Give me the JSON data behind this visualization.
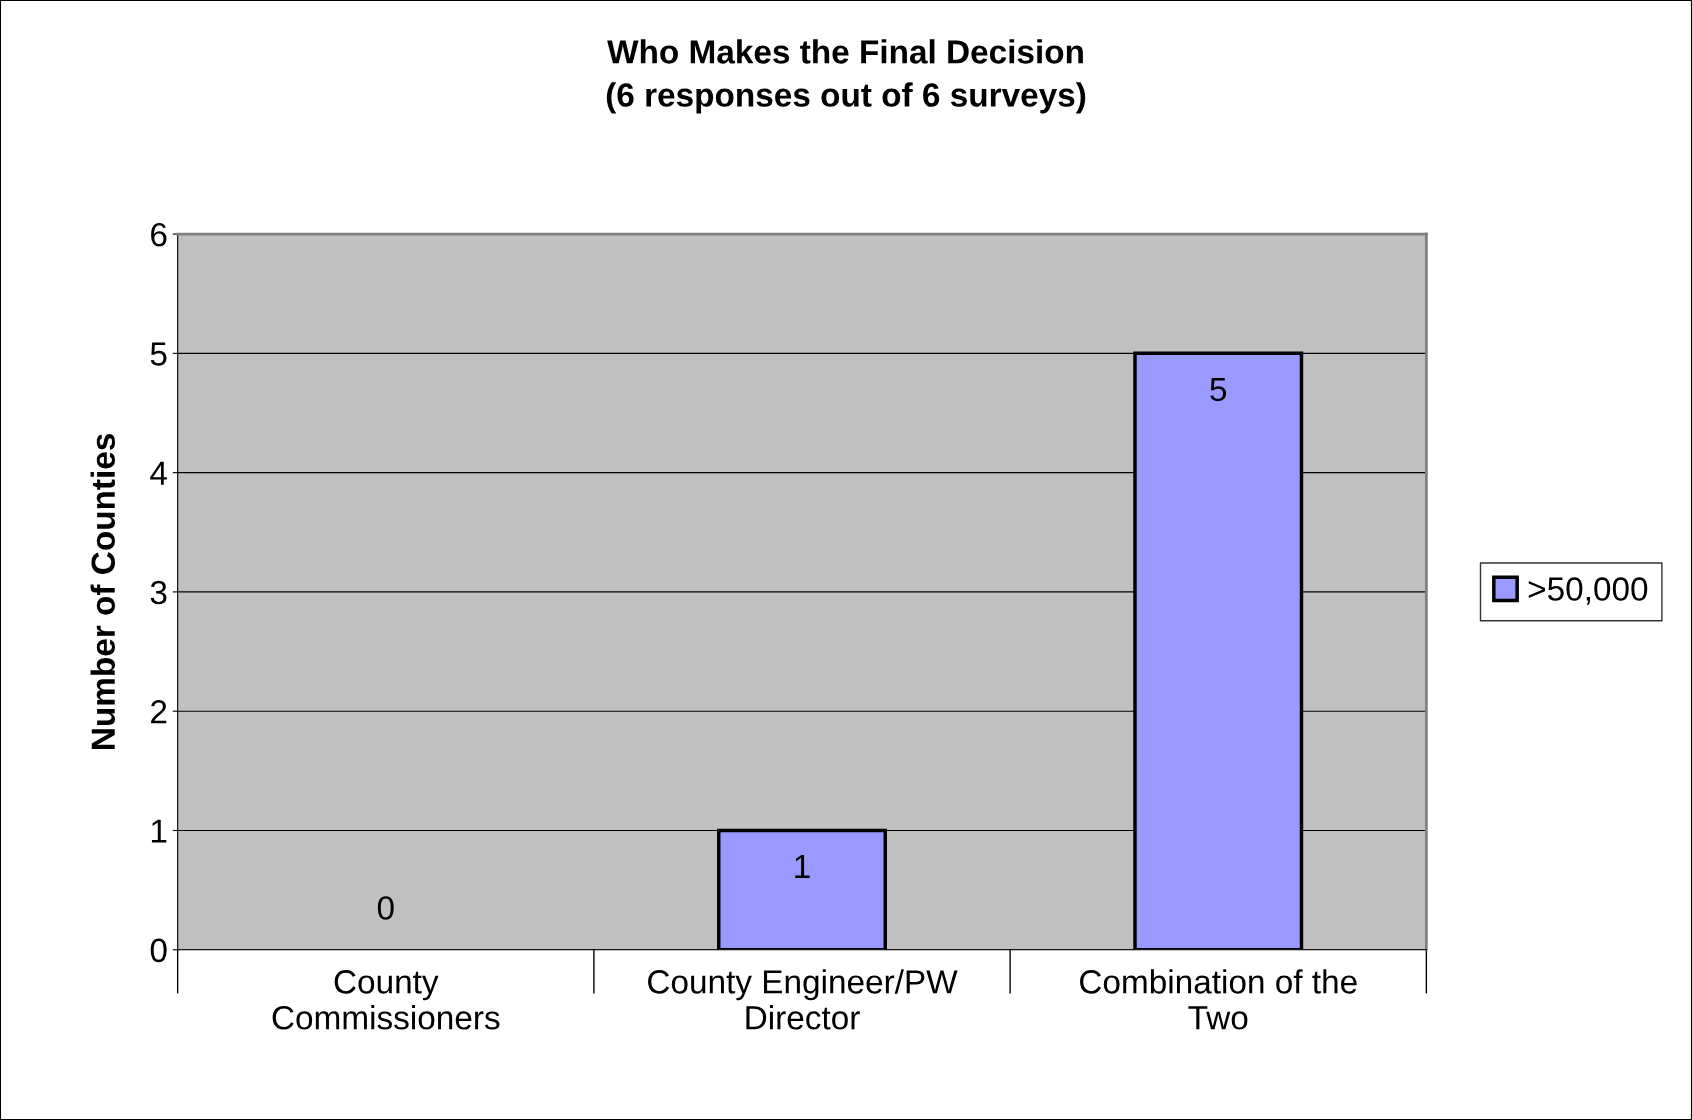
{
  "chart_data": {
    "type": "bar",
    "title": "Who Makes the Final Decision\n(6 responses out of 6 surveys)",
    "ylabel": "Number of Counties",
    "categories": [
      "County\nCommissioners",
      "County Engineer/PW\nDirector",
      "Combination of the\nTwo"
    ],
    "series": [
      {
        "name": ">50,000",
        "color": "#9999ff",
        "values": [
          0,
          1,
          5
        ]
      }
    ],
    "ylim": [
      0,
      6
    ],
    "yticks": [
      0,
      1,
      2,
      3,
      4,
      5,
      6
    ],
    "grid": "y",
    "legend": "right",
    "data_labels": true
  }
}
